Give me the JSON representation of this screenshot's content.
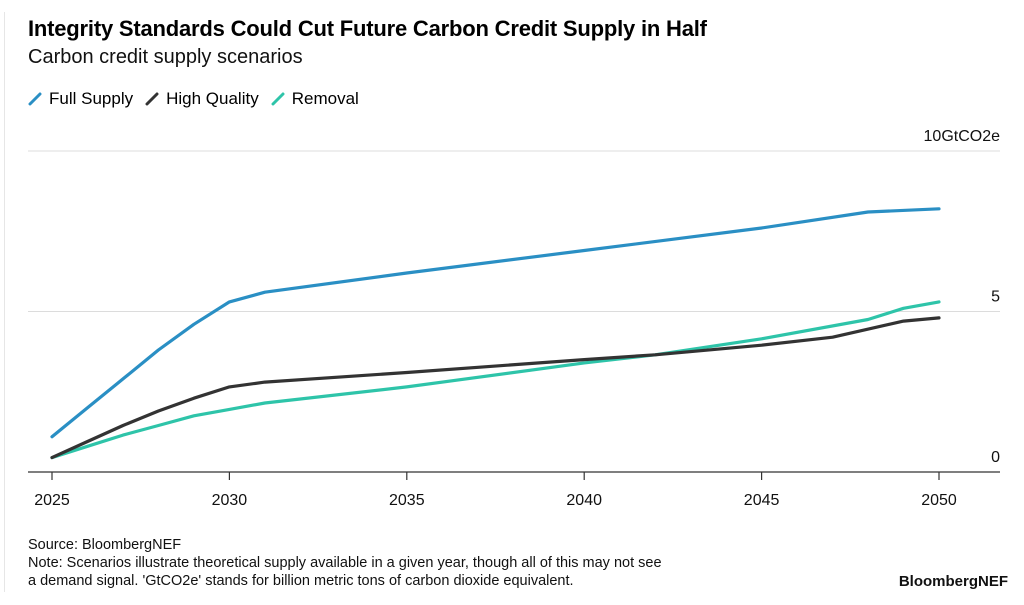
{
  "header": {
    "title": "Integrity Standards Could Cut Future Carbon Credit Supply in Half",
    "subtitle": "Carbon credit supply scenarios"
  },
  "footer": {
    "source": "Source: BloombergNEF",
    "note_line1": "Note: Scenarios illustrate theoretical supply available in a given year, though all of this may not see",
    "note_line2": "a demand signal. 'GtCO2e' stands for billion metric tons of carbon dioxide equivalent.",
    "brand": "BloombergNEF"
  },
  "chart_data": {
    "type": "line",
    "title": "Integrity Standards Could Cut Future Carbon Credit Supply in Half",
    "subtitle": "Carbon credit supply scenarios",
    "xlabel": "",
    "ylabel": "GtCO2e",
    "xlim": [
      2025,
      2050
    ],
    "ylim": [
      0,
      10
    ],
    "x_ticks": [
      2025,
      2030,
      2035,
      2040,
      2045,
      2050
    ],
    "x_tick_labels": [
      "2025",
      "2030",
      "2035",
      "2040",
      "2045",
      "2050"
    ],
    "y_ticks": [
      0,
      5,
      10
    ],
    "y_tick_labels": [
      "0",
      "5",
      "10GtCO2e"
    ],
    "grid": true,
    "legend_position": "top-left",
    "series": [
      {
        "name": "Full Supply",
        "color": "#2a8fc4",
        "x": [
          2025,
          2026,
          2027,
          2028,
          2029,
          2030,
          2031,
          2035,
          2040,
          2045,
          2048,
          2050
        ],
        "values": [
          1.1,
          2.0,
          2.9,
          3.8,
          4.6,
          5.3,
          5.6,
          6.2,
          6.9,
          7.6,
          8.1,
          8.2
        ]
      },
      {
        "name": "High Quality",
        "color": "#333333",
        "x": [
          2025,
          2026,
          2027,
          2028,
          2029,
          2030,
          2031,
          2035,
          2040,
          2042,
          2045,
          2047,
          2049,
          2050
        ],
        "values": [
          0.45,
          0.95,
          1.45,
          1.9,
          2.3,
          2.65,
          2.8,
          3.1,
          3.5,
          3.65,
          3.95,
          4.2,
          4.7,
          4.8
        ]
      },
      {
        "name": "Removal",
        "color": "#2ec4a9",
        "x": [
          2025,
          2026,
          2027,
          2028,
          2029,
          2030,
          2031,
          2035,
          2040,
          2042,
          2045,
          2048,
          2049,
          2050
        ],
        "values": [
          0.45,
          0.8,
          1.15,
          1.45,
          1.75,
          1.95,
          2.15,
          2.65,
          3.4,
          3.65,
          4.15,
          4.75,
          5.1,
          5.3
        ]
      }
    ]
  }
}
